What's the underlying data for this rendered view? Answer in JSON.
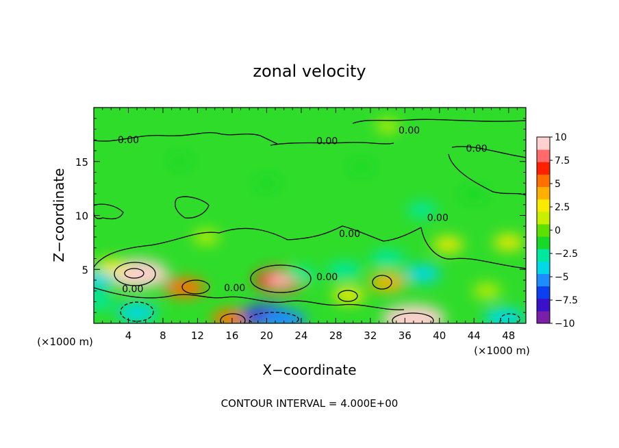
{
  "chart_data": {
    "type": "heatmap",
    "title": "zonal velocity",
    "xlabel": "X−coordinate",
    "ylabel": "Z−coordinate",
    "x_unit_left": "(×1000 m)",
    "x_unit_right": "(×1000 m)",
    "xlim": [
      0,
      50
    ],
    "ylim": [
      0,
      20
    ],
    "x_ticks": [
      4,
      8,
      12,
      16,
      20,
      24,
      28,
      32,
      36,
      40,
      44,
      48
    ],
    "y_ticks": [
      5,
      10,
      15
    ],
    "contour_interval_label": "CONTOUR INTERVAL = 4.000E+00",
    "contour_labels": [
      {
        "x": 4.5,
        "z": 2.9,
        "text": "0.00"
      },
      {
        "x": 16.3,
        "z": 3.0,
        "text": "0.00"
      },
      {
        "x": 27.0,
        "z": 4.0,
        "text": "0.00"
      },
      {
        "x": 4.0,
        "z": 16.7,
        "text": "0.00"
      },
      {
        "x": 27.0,
        "z": 16.6,
        "text": "0.00"
      },
      {
        "x": 36.5,
        "z": 17.6,
        "text": "0.00"
      },
      {
        "x": 44.3,
        "z": 15.9,
        "text": "0.00"
      },
      {
        "x": 39.8,
        "z": 9.5,
        "text": "0.00"
      },
      {
        "x": 29.6,
        "z": 8.0,
        "text": "0.00"
      }
    ],
    "colorbar": {
      "min": -10,
      "max": 10,
      "ticks": [
        "10",
        "7.5",
        "5",
        "2.5",
        "0",
        "−2.5",
        "−5",
        "−7.5",
        "−10"
      ],
      "colors": [
        "#7a1fa8",
        "#3a10c8",
        "#0a40f0",
        "#1e8cff",
        "#00d8e8",
        "#00e8a0",
        "#18d828",
        "#5ee000",
        "#c8ee00",
        "#f8ea00",
        "#ffb000",
        "#ff7000",
        "#ff2000",
        "#ff6a6a",
        "#ffd0d0"
      ]
    },
    "features": [
      {
        "x": 5.0,
        "z": 4.6,
        "value": 10
      },
      {
        "x": 21.5,
        "z": 4.0,
        "value": 7
      },
      {
        "x": 37.0,
        "z": 0.4,
        "value": 10
      },
      {
        "x": 10.5,
        "z": 3.3,
        "value": 5
      },
      {
        "x": 16.0,
        "z": 0.4,
        "value": 5
      },
      {
        "x": 2.0,
        "z": 5.2,
        "value": 3
      },
      {
        "x": 29.5,
        "z": 2.6,
        "value": 3
      },
      {
        "x": 34.0,
        "z": 3.8,
        "value": 4
      },
      {
        "x": 41.0,
        "z": 7.3,
        "value": 2.5
      },
      {
        "x": 48.0,
        "z": 7.5,
        "value": 2.5
      },
      {
        "x": 45.5,
        "z": 3.0,
        "value": 2
      },
      {
        "x": 5.0,
        "z": 1.0,
        "value": -5
      },
      {
        "x": 20.0,
        "z": 0.7,
        "value": -7
      },
      {
        "x": 22.0,
        "z": 0.3,
        "value": -6
      },
      {
        "x": 47.5,
        "z": 0.5,
        "value": -5
      },
      {
        "x": 38.0,
        "z": 4.6,
        "value": -4
      },
      {
        "x": 34.0,
        "z": 6.0,
        "value": -3.5
      },
      {
        "x": 29.0,
        "z": 4.9,
        "value": -3.5
      },
      {
        "x": 0.4,
        "z": 4.0,
        "value": -4
      },
      {
        "x": 0.5,
        "z": 2.0,
        "value": -3
      },
      {
        "x": 24.0,
        "z": 4.5,
        "value": -2.5
      },
      {
        "x": 38.0,
        "z": 10.5,
        "value": -2.5
      },
      {
        "x": 44.0,
        "z": 12.0,
        "value": -1.8
      },
      {
        "x": 20.0,
        "z": 13.0,
        "value": -1.2
      },
      {
        "x": 31.0,
        "z": 14.5,
        "value": -1.2
      },
      {
        "x": 10.0,
        "z": 15.0,
        "value": -0.8
      },
      {
        "x": 34.0,
        "z": 18.3,
        "value": 1.0
      },
      {
        "x": 13.0,
        "z": 8.0,
        "value": 1.5
      }
    ]
  }
}
